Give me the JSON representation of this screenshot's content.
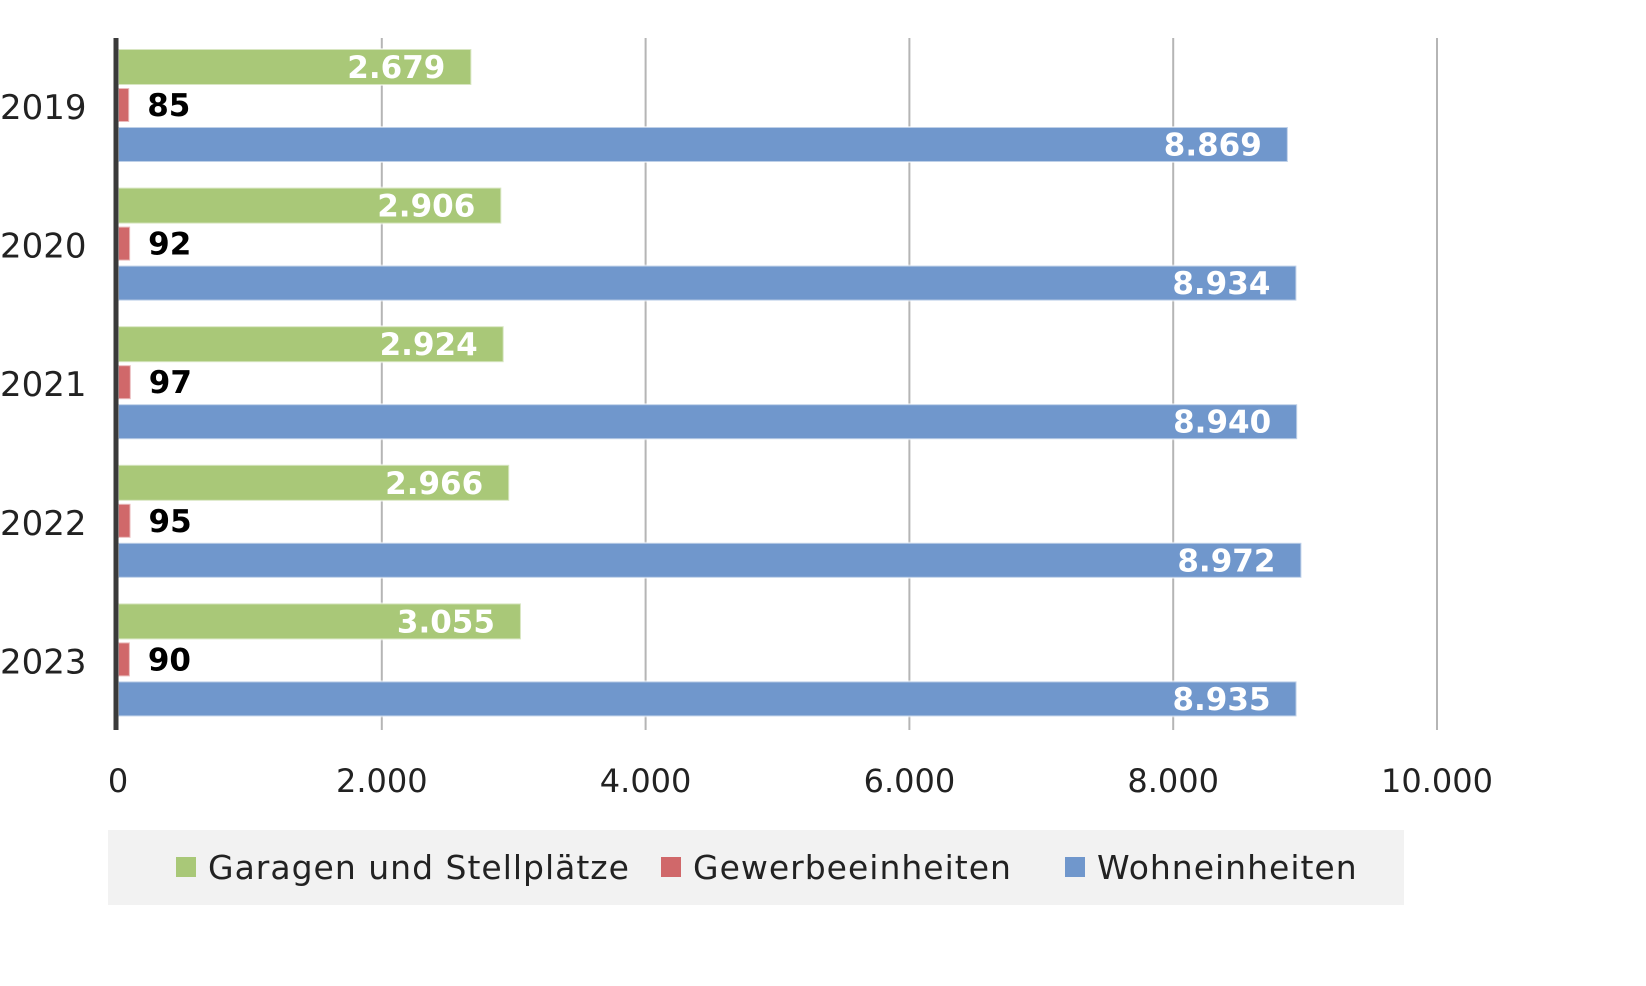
{
  "chart_data": {
    "type": "bar",
    "orientation": "horizontal",
    "categories": [
      "2019",
      "2020",
      "2021",
      "2022",
      "2023"
    ],
    "series": [
      {
        "name": "Garagen und Stellplätze",
        "values": [
          2679,
          2906,
          2924,
          2966,
          3055
        ],
        "labels": [
          "2.679",
          "2.906",
          "2.924",
          "2.966",
          "3.055"
        ],
        "color": "#a9c878"
      },
      {
        "name": "Gewerbeeinheiten",
        "values": [
          85,
          92,
          97,
          95,
          90
        ],
        "labels": [
          "85",
          "92",
          "97",
          "95",
          "90"
        ],
        "color": "#d0686a"
      },
      {
        "name": "Wohneinheiten",
        "values": [
          8869,
          8934,
          8940,
          8972,
          8935
        ],
        "labels": [
          "8.869",
          "8.934",
          "8.940",
          "8.972",
          "8.935"
        ],
        "color": "#7097cc"
      }
    ],
    "x_ticks": [
      {
        "value": 0,
        "label": "0"
      },
      {
        "value": 2000,
        "label": "2.000"
      },
      {
        "value": 4000,
        "label": "4.000"
      },
      {
        "value": 6000,
        "label": "6.000"
      },
      {
        "value": 8000,
        "label": "8.000"
      },
      {
        "value": 10000,
        "label": "10.000"
      }
    ],
    "xlim": [
      0,
      10000
    ],
    "title": "",
    "xlabel": "",
    "ylabel": "",
    "grid": "vertical",
    "legend_position": "bottom"
  }
}
